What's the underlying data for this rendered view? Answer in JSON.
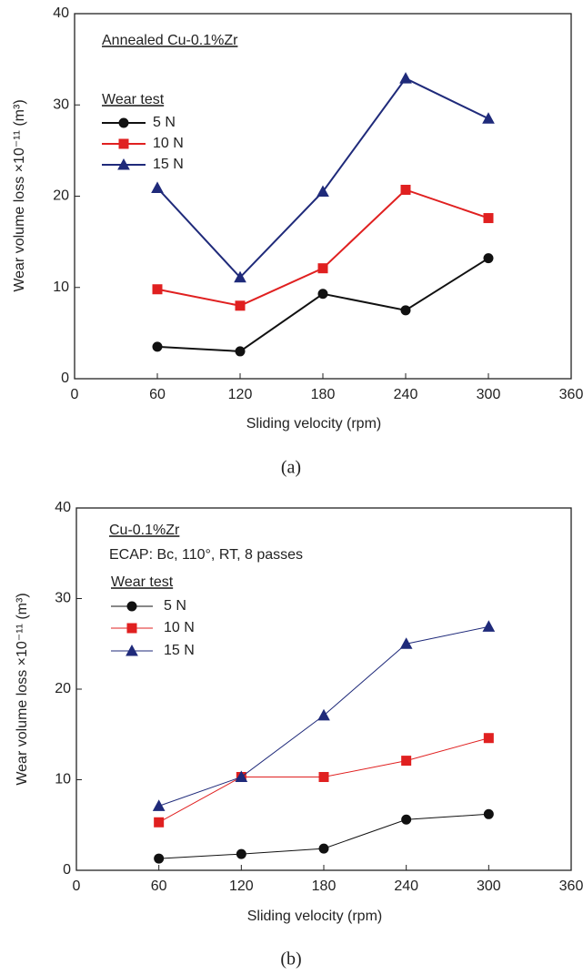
{
  "chart_data": [
    {
      "type": "line",
      "annotation": "Annealed  Cu-0.1%Zr",
      "legend_title": "Wear test",
      "xlabel": "Sliding velocity (rpm)",
      "ylabel": "Wear volume loss ×10⁻¹¹ (m³)",
      "caption": "(a)",
      "x": [
        60,
        120,
        180,
        240,
        300
      ],
      "series": [
        {
          "name": "5 N",
          "color": "#111111",
          "marker": "circle",
          "values": [
            3.5,
            3.0,
            9.3,
            7.5,
            13.2
          ]
        },
        {
          "name": "10 N",
          "color": "#e02020",
          "marker": "square",
          "values": [
            9.8,
            8.0,
            12.1,
            20.7,
            17.6
          ]
        },
        {
          "name": "15 N",
          "color": "#1f2a7a",
          "marker": "triangle",
          "values": [
            20.9,
            11.1,
            20.5,
            32.9,
            28.5
          ]
        }
      ],
      "xlim": [
        0,
        360
      ],
      "xticks": [
        0,
        60,
        120,
        180,
        240,
        300,
        360
      ],
      "ylim": [
        0,
        40
      ],
      "yticks": [
        0,
        10,
        20,
        30,
        40
      ],
      "legend": "upper left"
    },
    {
      "type": "line",
      "annotation": [
        "Cu-0.1%Zr",
        "ECAP: Bc, 110°, RT, 8 passes"
      ],
      "legend_title": "Wear test",
      "xlabel": "Sliding velocity (rpm)",
      "ylabel": "Wear volume loss ×10⁻¹¹ (m³)",
      "caption": "(b)",
      "x": [
        60,
        120,
        180,
        240,
        300
      ],
      "series": [
        {
          "name": "5 N",
          "color": "#111111",
          "marker": "circle",
          "values": [
            1.3,
            1.8,
            2.4,
            5.6,
            6.2
          ]
        },
        {
          "name": "10 N",
          "color": "#e02020",
          "marker": "square",
          "values": [
            5.3,
            10.3,
            10.3,
            12.1,
            14.6
          ]
        },
        {
          "name": "15 N",
          "color": "#1f2a7a",
          "marker": "triangle",
          "values": [
            7.1,
            10.3,
            17.1,
            25.0,
            26.9
          ]
        }
      ],
      "xlim": [
        0,
        360
      ],
      "xticks": [
        0,
        60,
        120,
        180,
        240,
        300,
        360
      ],
      "ylim": [
        0,
        40
      ],
      "yticks": [
        0,
        10,
        20,
        30,
        40
      ],
      "legend": "upper left"
    }
  ]
}
